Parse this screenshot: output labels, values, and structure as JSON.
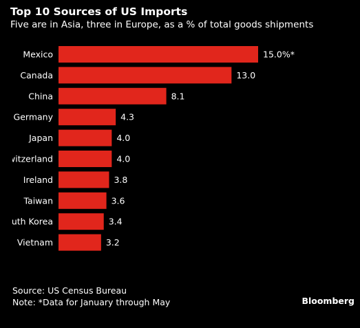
{
  "colors": {
    "background": "#000000",
    "bar": "#e1261c",
    "text": "#ffffff"
  },
  "chart_data": {
    "type": "bar",
    "orientation": "horizontal",
    "title": "Top 10 Sources of US Imports",
    "subtitle": "Five are in Asia, three in Europe, as a % of total goods shipments",
    "categories": [
      "Mexico",
      "Canada",
      "China",
      "Germany",
      "Japan",
      "Switzerland",
      "Ireland",
      "Taiwan",
      "South Korea",
      "Vietnam"
    ],
    "values": [
      15.0,
      13.0,
      8.1,
      4.3,
      4.0,
      4.0,
      3.8,
      3.6,
      3.4,
      3.2
    ],
    "value_labels": [
      "15.0%*",
      "13.0",
      "8.1",
      "4.3",
      "4.0",
      "4.0",
      "3.8",
      "3.6",
      "3.4",
      "3.2"
    ],
    "xlim": [
      0,
      15
    ],
    "grid": false,
    "legend": false
  },
  "footer": {
    "source": "Source: US Census Bureau",
    "note": "Note: *Data for January through May",
    "brand": "Bloomberg"
  }
}
